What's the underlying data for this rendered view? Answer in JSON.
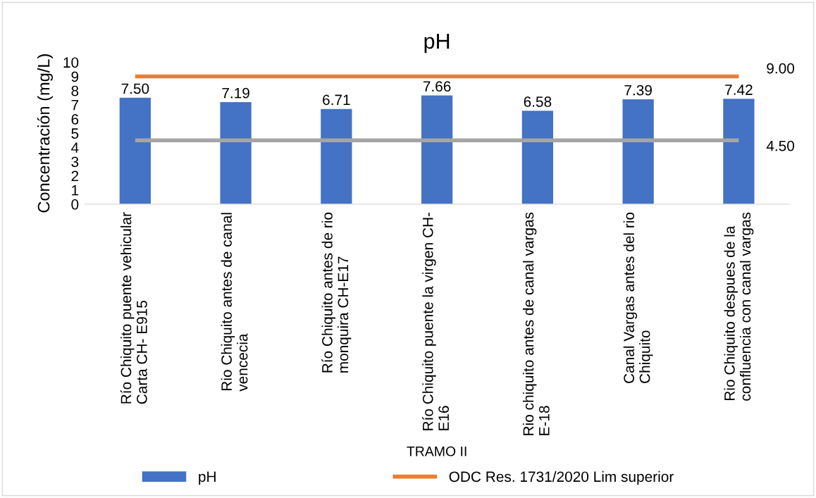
{
  "chart_data": {
    "type": "bar",
    "title": "pH",
    "xlabel": "TRAMO II",
    "ylabel": "Concentración (mg/L)",
    "categories": [
      "Río Chiquito puente vehicular\nCarta CH- E915",
      "Rio Chiquito antes de canal\nvencecia",
      "Río Chiquito antes de rio\nmonquira CH-E17",
      "Río Chiquito puente la virgen CH-\nE16",
      "Rio chiquito antes de canal vargas\nE-18",
      "Canal Vargas antes del rio\nChiquito",
      "Rio Chiquito despues de la\nconfluencia con canal vargas"
    ],
    "series": [
      {
        "name": "pH",
        "color": "#4472c4",
        "values": [
          7.5,
          7.19,
          6.71,
          7.66,
          6.58,
          7.39,
          7.42
        ],
        "value_labels": [
          "7.50",
          "7.19",
          "6.71",
          "7.66",
          "6.58",
          "7.39",
          "7.42"
        ]
      },
      {
        "name": "ODC Res. 1731/2020 Lim superior",
        "type": "line",
        "color": "#ed7d31",
        "values": [
          9.0,
          9.0,
          9.0,
          9.0,
          9.0,
          9.0,
          9.0
        ],
        "value_labels": [
          null,
          null,
          null,
          null,
          null,
          null,
          "9.00"
        ]
      },
      {
        "type": "line",
        "color": "#a5a5a5",
        "values": [
          4.5,
          4.5,
          4.5,
          4.5,
          4.5,
          4.5,
          4.5
        ],
        "value_labels": [
          null,
          null,
          null,
          null,
          null,
          null,
          "4.50"
        ]
      }
    ],
    "ylim": [
      0,
      10
    ],
    "yticks": [
      0,
      1,
      2,
      3,
      4,
      5,
      6,
      7,
      8,
      9,
      10
    ],
    "grid": false,
    "legend": "bottom"
  }
}
